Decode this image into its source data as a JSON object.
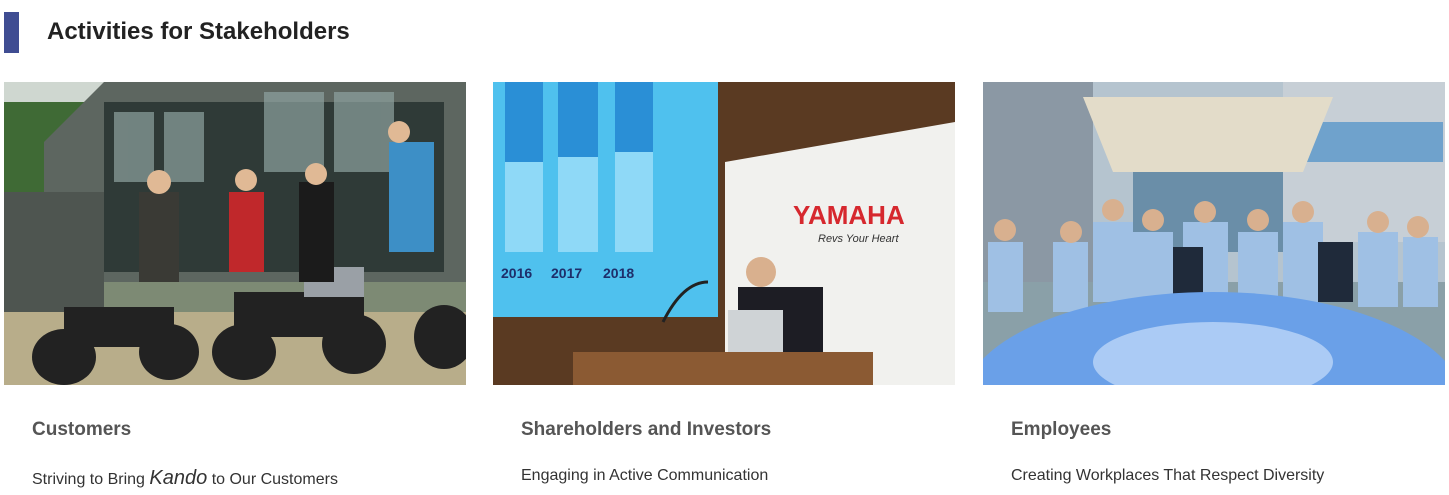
{
  "header": {
    "title": "Activities for Stakeholders"
  },
  "cards": [
    {
      "heading": "Customers",
      "description_parts": [
        "Striving to Bring",
        "Kando",
        "to Our Customers"
      ]
    },
    {
      "heading": "Shareholders and Investors",
      "description_parts": [
        "Engaging in Active Communication"
      ],
      "image_text": {
        "years": [
          "2016",
          "2017",
          "2018"
        ],
        "brand": "YAMAHA",
        "slogan": "Revs Your Heart"
      }
    },
    {
      "heading": "Employees",
      "description_parts": [
        "Creating Workplaces That Respect Diversity"
      ]
    }
  ]
}
